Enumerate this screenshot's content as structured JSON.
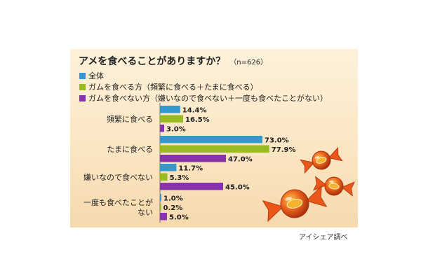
{
  "title": "アメを食べることがありますか？",
  "sample_note": "（n=626）",
  "source": "アイシェア調べ",
  "colors": {
    "total": "#3399cc",
    "gum_eaters": "#99bb22",
    "non_gum_eaters": "#8833aa"
  },
  "chart_data": {
    "type": "bar",
    "orientation": "horizontal",
    "categories": [
      "頻繁に食べる",
      "たまに食べる",
      "嫌いなので食べない",
      "一度も食べたことが\nない"
    ],
    "series": [
      {
        "name": "全体",
        "values": [
          14.4,
          73.0,
          11.7,
          1.0
        ]
      },
      {
        "name": "ガムを食べる方（頻繁に食べる＋たまに食べる）",
        "values": [
          16.5,
          77.9,
          5.3,
          0.2
        ]
      },
      {
        "name": "ガムを食べない方（嫌いなので食べない＋一度も食べたことがない）",
        "values": [
          3.0,
          47.0,
          45.0,
          5.0
        ]
      }
    ],
    "unit": "%",
    "xlim": [
      0,
      100
    ],
    "legend": "top-left"
  }
}
